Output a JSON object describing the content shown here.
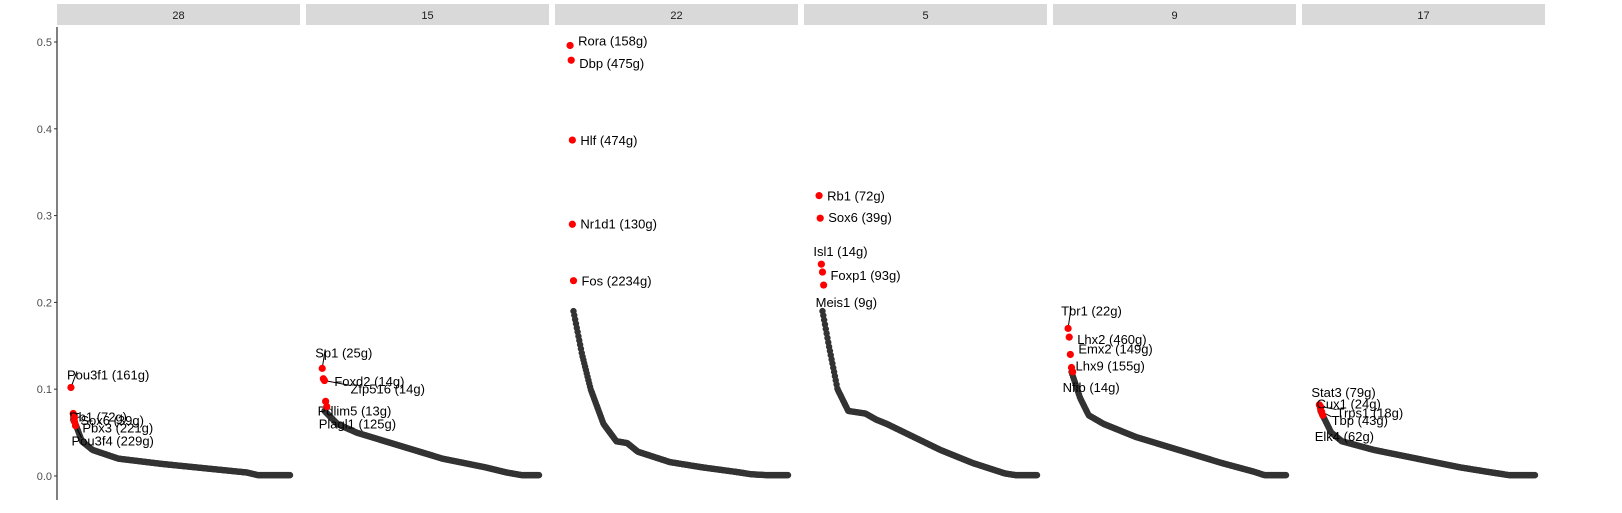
{
  "chart_data": {
    "type": "scatter",
    "title": "",
    "xlabel": "",
    "ylabel": "",
    "ylim": [
      0,
      0.52
    ],
    "yticks": [
      "0.0",
      "0.1",
      "0.2",
      "0.3",
      "0.4",
      "0.5"
    ],
    "ytick_values": [
      0,
      0.1,
      0.2,
      0.3,
      0.4,
      0.5
    ],
    "grid": false,
    "legend": "none",
    "colors": {
      "strip": "#d9d9d9",
      "point": "#333333",
      "highlight": "#ff0000",
      "leader": "#000000"
    },
    "panels": [
      {
        "strip": "28",
        "curve": [
          [
            0,
            0.06
          ],
          [
            0.03,
            0.04
          ],
          [
            0.08,
            0.03
          ],
          [
            0.2,
            0.02
          ],
          [
            0.4,
            0.014
          ],
          [
            0.6,
            0.009
          ],
          [
            0.8,
            0.004
          ],
          [
            0.85,
            0.001
          ],
          [
            1,
            0.001
          ]
        ],
        "highlights": [
          {
            "label": "Pou3f1 (161g)",
            "x": 0.035,
            "y": 0.102
          },
          {
            "label": "Rb1 (72g)",
            "x": 0.045,
            "y": 0.072
          },
          {
            "label": "Sox6 (39g)",
            "x": 0.05,
            "y": 0.067
          },
          {
            "label": "Pbx3 (221g)",
            "x": 0.05,
            "y": 0.063
          },
          {
            "label": "Pou3f4 (229g)",
            "x": 0.055,
            "y": 0.058
          }
        ]
      },
      {
        "strip": "15",
        "curve": [
          [
            0,
            0.075
          ],
          [
            0.06,
            0.06
          ],
          [
            0.15,
            0.05
          ],
          [
            0.35,
            0.035
          ],
          [
            0.55,
            0.02
          ],
          [
            0.75,
            0.01
          ],
          [
            0.85,
            0.004
          ],
          [
            0.92,
            0.001
          ],
          [
            1,
            0.001
          ]
        ],
        "highlights": [
          {
            "label": "Sp1 (25g)",
            "x": 0.045,
            "y": 0.124
          },
          {
            "label": "Foxd2 (14g)",
            "x": 0.05,
            "y": 0.112
          },
          {
            "label": "Zfp516 (14g)",
            "x": 0.055,
            "y": 0.11
          },
          {
            "label": "Pdlim5 (13g)",
            "x": 0.06,
            "y": 0.086
          },
          {
            "label": "Plagl1 (125g)",
            "x": 0.065,
            "y": 0.08
          }
        ]
      },
      {
        "strip": "22",
        "curve": [
          [
            0,
            0.19
          ],
          [
            0.04,
            0.14
          ],
          [
            0.08,
            0.1
          ],
          [
            0.14,
            0.06
          ],
          [
            0.2,
            0.04
          ],
          [
            0.25,
            0.038
          ],
          [
            0.3,
            0.028
          ],
          [
            0.45,
            0.016
          ],
          [
            0.6,
            0.01
          ],
          [
            0.75,
            0.005
          ],
          [
            0.83,
            0.002
          ],
          [
            0.9,
            0.001
          ],
          [
            1,
            0.001
          ]
        ],
        "highlights": [
          {
            "label": "Rora (158g)",
            "x": 0.04,
            "y": 0.496
          },
          {
            "label": "Dbp (475g)",
            "x": 0.045,
            "y": 0.479
          },
          {
            "label": "Hlf (474g)",
            "x": 0.05,
            "y": 0.387
          },
          {
            "label": "Nr1d1 (130g)",
            "x": 0.05,
            "y": 0.29
          },
          {
            "label": "Fos (2234g)",
            "x": 0.055,
            "y": 0.225
          }
        ]
      },
      {
        "strip": "5",
        "curve": [
          [
            0,
            0.19
          ],
          [
            0.03,
            0.15
          ],
          [
            0.07,
            0.1
          ],
          [
            0.12,
            0.075
          ],
          [
            0.2,
            0.072
          ],
          [
            0.25,
            0.065
          ],
          [
            0.3,
            0.06
          ],
          [
            0.55,
            0.03
          ],
          [
            0.7,
            0.015
          ],
          [
            0.85,
            0.003
          ],
          [
            0.9,
            0.001
          ],
          [
            1,
            0.001
          ]
        ],
        "highlights": [
          {
            "label": "Rb1 (72g)",
            "x": 0.04,
            "y": 0.323
          },
          {
            "label": "Sox6 (39g)",
            "x": 0.045,
            "y": 0.297
          },
          {
            "label": "Isl1 (14g)",
            "x": 0.05,
            "y": 0.244
          },
          {
            "label": "Foxp1 (93g)",
            "x": 0.055,
            "y": 0.235
          },
          {
            "label": "Meis1 (9g)",
            "x": 0.06,
            "y": 0.22
          }
        ]
      },
      {
        "strip": "9",
        "curve": [
          [
            0,
            0.12
          ],
          [
            0.04,
            0.09
          ],
          [
            0.08,
            0.07
          ],
          [
            0.15,
            0.06
          ],
          [
            0.3,
            0.045
          ],
          [
            0.5,
            0.03
          ],
          [
            0.7,
            0.015
          ],
          [
            0.85,
            0.005
          ],
          [
            0.9,
            0.001
          ],
          [
            1,
            0.001
          ]
        ],
        "highlights": [
          {
            "label": "Tbr1 (22g)",
            "x": 0.04,
            "y": 0.17
          },
          {
            "label": "Lhx2 (460g)",
            "x": 0.045,
            "y": 0.16
          },
          {
            "label": "Emx2 (149g)",
            "x": 0.05,
            "y": 0.14
          },
          {
            "label": "Lhx9 (155g)",
            "x": 0.055,
            "y": 0.125
          },
          {
            "label": "Nfib (14g)",
            "x": 0.06,
            "y": 0.12
          }
        ]
      },
      {
        "strip": "17",
        "curve": [
          [
            0,
            0.075
          ],
          [
            0.05,
            0.05
          ],
          [
            0.1,
            0.04
          ],
          [
            0.25,
            0.03
          ],
          [
            0.45,
            0.02
          ],
          [
            0.65,
            0.01
          ],
          [
            0.8,
            0.004
          ],
          [
            0.88,
            0.001
          ],
          [
            1,
            0.001
          ]
        ],
        "highlights": [
          {
            "label": "Stat3 (79g)",
            "x": 0.05,
            "y": 0.082
          },
          {
            "label": "Trps1 (18g)",
            "x": 0.055,
            "y": 0.08
          },
          {
            "label": "Cux1 (24g)",
            "x": 0.055,
            "y": 0.078
          },
          {
            "label": "Tbp (43g)",
            "x": 0.06,
            "y": 0.074
          },
          {
            "label": "Elk4 (62g)",
            "x": 0.065,
            "y": 0.07
          }
        ]
      }
    ]
  }
}
